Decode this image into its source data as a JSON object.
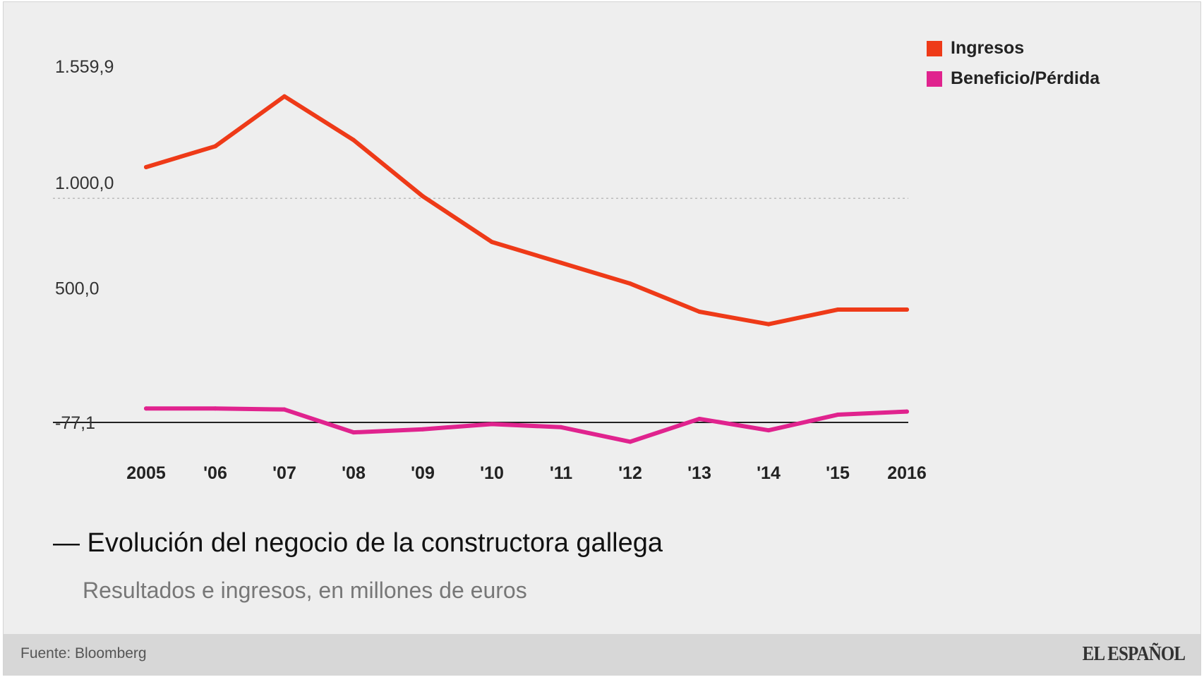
{
  "chart_data": {
    "type": "line",
    "title": "— Evolución del negocio de la constructora gallega",
    "subtitle": "Resultados e ingresos, en millones de euros",
    "x_labels": [
      "2005",
      "'06",
      "'07",
      "'08",
      "'09",
      "'10",
      "'11",
      "'12",
      "'13",
      "'14",
      "'15",
      "2016"
    ],
    "y_ticks": [
      {
        "value": 1559.9,
        "label": "1.559,9"
      },
      {
        "value": 1000.0,
        "label": "1.000,0"
      },
      {
        "value": 500.0,
        "label": "500,0"
      },
      {
        "value": -77.1,
        "label": "-77,1"
      }
    ],
    "ylim": [
      -77.1,
      1559.9
    ],
    "series": [
      {
        "name": "Ingresos",
        "color": "#ee3a18",
        "values": [
          1150,
          1250,
          1490,
          1280,
          1010,
          790,
          690,
          590,
          455,
          395,
          465,
          465
        ]
      },
      {
        "name": "Beneficio/Pérdida",
        "color": "#e0238e",
        "values": [
          -10,
          -10,
          -15,
          -125,
          -110,
          -85,
          -100,
          -170,
          -60,
          -115,
          -40,
          -25
        ]
      }
    ],
    "legend": "top-right",
    "source": "Fuente: Bloomberg",
    "brand": "EL ESPAÑOL"
  }
}
